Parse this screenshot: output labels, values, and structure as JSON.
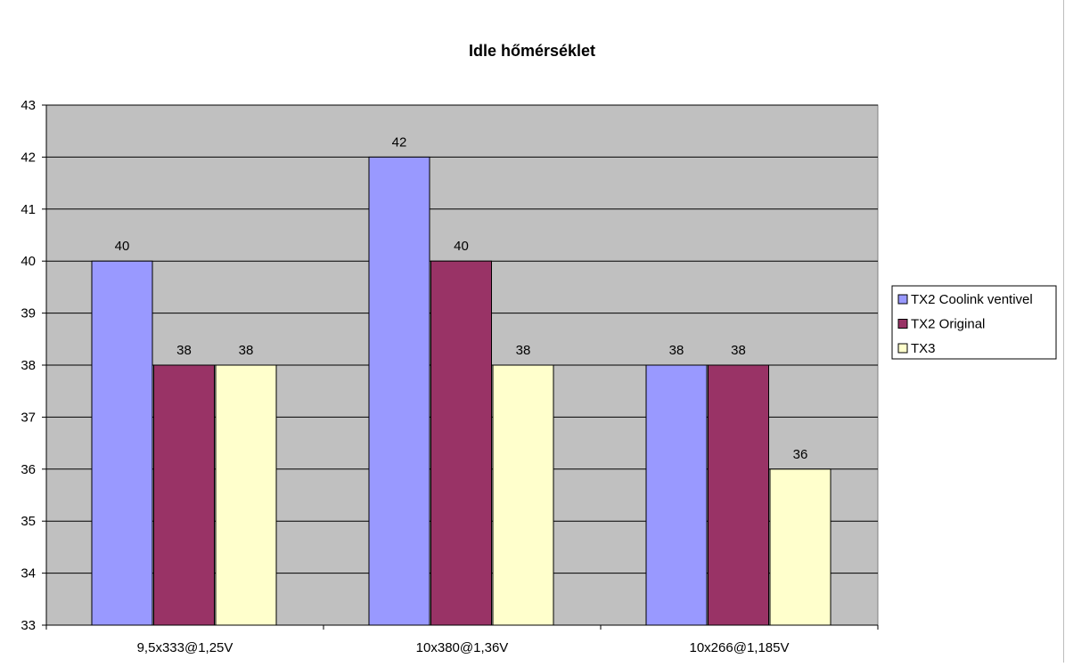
{
  "chart_data": {
    "type": "bar",
    "title": "Idle hőmérséklet",
    "xlabel": "",
    "ylabel": "",
    "categories": [
      "9,5x333@1,25V",
      "10x380@1,36V",
      "10x266@1,185V"
    ],
    "series": [
      {
        "name": "TX2 Coolink ventivel",
        "values": [
          40,
          42,
          38
        ],
        "color": "#9999ff"
      },
      {
        "name": "TX2 Original",
        "values": [
          38,
          40,
          38
        ],
        "color": "#993366"
      },
      {
        "name": "TX3",
        "values": [
          38,
          38,
          36
        ],
        "color": "#ffffcc"
      }
    ],
    "ylim": [
      33,
      43
    ],
    "yticks": [
      33,
      34,
      35,
      36,
      37,
      38,
      39,
      40,
      41,
      42,
      43
    ],
    "grid": true,
    "plot_background": "#c0c0c0",
    "legend_position": "right",
    "data_labels": true
  }
}
